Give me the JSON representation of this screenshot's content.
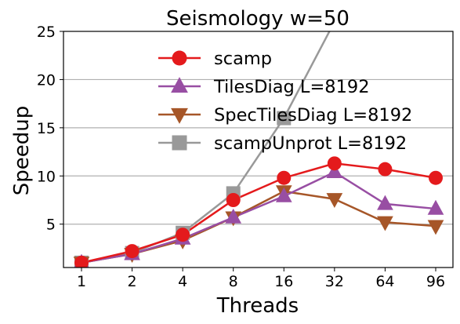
{
  "chart_data": {
    "type": "line",
    "title": "Seismology w=50",
    "xlabel": "Threads",
    "ylabel": "Speedup",
    "categories": [
      "1",
      "2",
      "4",
      "8",
      "16",
      "32",
      "64",
      "96"
    ],
    "ylim": [
      0.5,
      25
    ],
    "yticks": [
      5,
      10,
      15,
      20,
      25
    ],
    "grid": "horizontal",
    "legend_position": "top-left",
    "series": [
      {
        "name": "scamp",
        "marker": "circle",
        "color": "#e41a1c",
        "values": [
          1.0,
          2.2,
          3.9,
          7.5,
          9.8,
          11.3,
          10.7,
          9.8
        ]
      },
      {
        "name": "TilesDiag L=8192",
        "marker": "triangle-up",
        "color": "#984ea3",
        "values": [
          1.0,
          1.9,
          3.5,
          5.7,
          7.9,
          10.4,
          7.1,
          6.6
        ]
      },
      {
        "name": "SpecTilesDiag L=8192",
        "marker": "triangle-down",
        "color": "#a65628",
        "values": [
          1.0,
          1.9,
          3.3,
          5.7,
          8.4,
          7.6,
          5.2,
          4.8
        ]
      },
      {
        "name": "scampUnprot L=8192",
        "marker": "square",
        "color": "#999999",
        "values": [
          1.0,
          2.0,
          4.1,
          8.2,
          16.0,
          26.0,
          null,
          null
        ]
      }
    ]
  }
}
